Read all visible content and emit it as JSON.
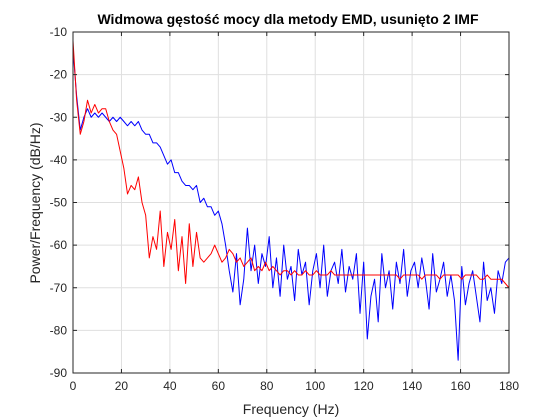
{
  "chart_data": {
    "type": "line",
    "title": "Widmowa gęstość mocy dla metody EMD, usunięto 2 IMF",
    "xlabel": "Frequency (Hz)",
    "ylabel": "Power/Frequency (dB/Hz)",
    "xlim": [
      0,
      180
    ],
    "ylim": [
      -90,
      -10
    ],
    "x_ticks": [
      0,
      20,
      40,
      60,
      80,
      100,
      120,
      140,
      160,
      180
    ],
    "y_ticks": [
      -90,
      -80,
      -70,
      -60,
      -50,
      -40,
      -30,
      -20,
      -10
    ],
    "grid": true,
    "series": [
      {
        "color": "#0000ff",
        "points": [
          [
            0,
            -14
          ],
          [
            1.5,
            -25
          ],
          [
            3,
            -33
          ],
          [
            4.5,
            -30
          ],
          [
            6,
            -28
          ],
          [
            7.5,
            -30
          ],
          [
            9,
            -29
          ],
          [
            10.5,
            -30
          ],
          [
            12,
            -29
          ],
          [
            13.5,
            -30
          ],
          [
            15,
            -31
          ],
          [
            16.5,
            -30
          ],
          [
            18,
            -31
          ],
          [
            19.5,
            -30
          ],
          [
            21,
            -31
          ],
          [
            22.5,
            -32
          ],
          [
            24,
            -31
          ],
          [
            25.5,
            -32
          ],
          [
            27,
            -31
          ],
          [
            28.5,
            -33
          ],
          [
            30,
            -34
          ],
          [
            31.5,
            -34
          ],
          [
            33,
            -36
          ],
          [
            34.5,
            -36
          ],
          [
            36,
            -37
          ],
          [
            37.5,
            -39
          ],
          [
            39,
            -41
          ],
          [
            40.5,
            -40
          ],
          [
            42,
            -43
          ],
          [
            43.5,
            -43
          ],
          [
            45,
            -45
          ],
          [
            46.5,
            -46
          ],
          [
            48,
            -46
          ],
          [
            49.5,
            -47
          ],
          [
            51,
            -46
          ],
          [
            52.5,
            -50
          ],
          [
            54,
            -49
          ],
          [
            55.5,
            -51
          ],
          [
            57,
            -51
          ],
          [
            58.5,
            -53
          ],
          [
            60,
            -52
          ],
          [
            61.5,
            -55
          ],
          [
            63,
            -60
          ],
          [
            64.5,
            -66
          ],
          [
            66,
            -71
          ],
          [
            67.5,
            -62
          ],
          [
            69,
            -74
          ],
          [
            70.5,
            -68
          ],
          [
            72,
            -56
          ],
          [
            73.5,
            -66
          ],
          [
            75,
            -60
          ],
          [
            76.5,
            -69
          ],
          [
            78,
            -62
          ],
          [
            79.5,
            -65
          ],
          [
            81,
            -58
          ],
          [
            82.5,
            -70
          ],
          [
            84,
            -63
          ],
          [
            85.5,
            -72
          ],
          [
            87,
            -60
          ],
          [
            88.5,
            -68
          ],
          [
            90,
            -65
          ],
          [
            91.5,
            -73
          ],
          [
            93,
            -61
          ],
          [
            94.5,
            -67
          ],
          [
            96,
            -64
          ],
          [
            97.5,
            -74
          ],
          [
            99,
            -66
          ],
          [
            100.5,
            -62
          ],
          [
            102,
            -70
          ],
          [
            103.5,
            -60
          ],
          [
            105,
            -72
          ],
          [
            106.5,
            -66
          ],
          [
            108,
            -64
          ],
          [
            109.5,
            -69
          ],
          [
            111,
            -61
          ],
          [
            112.5,
            -71
          ],
          [
            114,
            -65
          ],
          [
            115.5,
            -68
          ],
          [
            117,
            -62
          ],
          [
            118.5,
            -76
          ],
          [
            120,
            -64
          ],
          [
            121.5,
            -82
          ],
          [
            123,
            -72
          ],
          [
            124.5,
            -68
          ],
          [
            126,
            -78
          ],
          [
            127.5,
            -62
          ],
          [
            129,
            -70
          ],
          [
            130.5,
            -66
          ],
          [
            132,
            -75
          ],
          [
            133.5,
            -64
          ],
          [
            135,
            -69
          ],
          [
            136.5,
            -61
          ],
          [
            138,
            -72
          ],
          [
            139.5,
            -66
          ],
          [
            141,
            -64
          ],
          [
            142.5,
            -70
          ],
          [
            144,
            -63
          ],
          [
            145.5,
            -68
          ],
          [
            147,
            -75
          ],
          [
            148.5,
            -62
          ],
          [
            150,
            -71
          ],
          [
            151.5,
            -68
          ],
          [
            153,
            -64
          ],
          [
            154.5,
            -72
          ],
          [
            156,
            -67
          ],
          [
            157.5,
            -73
          ],
          [
            159,
            -87
          ],
          [
            160.5,
            -65
          ],
          [
            162,
            -74
          ],
          [
            163.5,
            -69
          ],
          [
            165,
            -66
          ],
          [
            166.5,
            -72
          ],
          [
            168,
            -78
          ],
          [
            169.5,
            -64
          ],
          [
            171,
            -73
          ],
          [
            172.5,
            -70
          ],
          [
            174,
            -76
          ],
          [
            175.5,
            -66
          ],
          [
            177,
            -69
          ],
          [
            178.5,
            -64
          ],
          [
            180,
            -63
          ]
        ]
      },
      {
        "color": "#ff0000",
        "points": [
          [
            0,
            -12
          ],
          [
            1.5,
            -26
          ],
          [
            3,
            -34
          ],
          [
            4.5,
            -31
          ],
          [
            6,
            -26
          ],
          [
            7.5,
            -29
          ],
          [
            9,
            -27
          ],
          [
            10.5,
            -29
          ],
          [
            12,
            -28
          ],
          [
            13.5,
            -28
          ],
          [
            15,
            -31
          ],
          [
            16.5,
            -33
          ],
          [
            18,
            -34
          ],
          [
            19.5,
            -38
          ],
          [
            21,
            -42
          ],
          [
            22.5,
            -48
          ],
          [
            24,
            -46
          ],
          [
            25.5,
            -47
          ],
          [
            27,
            -44
          ],
          [
            28.5,
            -50
          ],
          [
            30,
            -53
          ],
          [
            31.5,
            -63
          ],
          [
            33,
            -58
          ],
          [
            34.5,
            -61
          ],
          [
            36,
            -52
          ],
          [
            37.5,
            -65
          ],
          [
            39,
            -57
          ],
          [
            40.5,
            -61
          ],
          [
            42,
            -54
          ],
          [
            43.5,
            -66
          ],
          [
            45,
            -58
          ],
          [
            46.5,
            -69
          ],
          [
            48,
            -55
          ],
          [
            49.5,
            -65
          ],
          [
            51,
            -57
          ],
          [
            52.5,
            -63
          ],
          [
            54,
            -64
          ],
          [
            55.5,
            -63
          ],
          [
            57,
            -62
          ],
          [
            58.5,
            -60
          ],
          [
            60,
            -62
          ],
          [
            61.5,
            -64
          ],
          [
            63,
            -63
          ],
          [
            64.5,
            -61
          ],
          [
            66,
            -62
          ],
          [
            67.5,
            -64
          ],
          [
            69,
            -63
          ],
          [
            70.5,
            -65
          ],
          [
            72,
            -64
          ],
          [
            73.5,
            -63
          ],
          [
            75,
            -66
          ],
          [
            76.5,
            -65
          ],
          [
            78,
            -66
          ],
          [
            79.5,
            -64
          ],
          [
            81,
            -66
          ],
          [
            82.5,
            -65
          ],
          [
            84,
            -66
          ],
          [
            85.5,
            -67
          ],
          [
            87,
            -66
          ],
          [
            88.5,
            -66
          ],
          [
            90,
            -67
          ],
          [
            91.5,
            -66
          ],
          [
            93,
            -67
          ],
          [
            94.5,
            -67
          ],
          [
            96,
            -66
          ],
          [
            97.5,
            -67
          ],
          [
            99,
            -67
          ],
          [
            100.5,
            -66
          ],
          [
            102,
            -67
          ],
          [
            103.5,
            -67
          ],
          [
            105,
            -67
          ],
          [
            106.5,
            -66
          ],
          [
            108,
            -67
          ],
          [
            109.5,
            -67
          ],
          [
            111,
            -67
          ],
          [
            112.5,
            -67
          ],
          [
            114,
            -67
          ],
          [
            115.5,
            -67
          ],
          [
            117,
            -67
          ],
          [
            118.5,
            -67
          ],
          [
            120,
            -67
          ],
          [
            121.5,
            -67
          ],
          [
            123,
            -67
          ],
          [
            124.5,
            -67
          ],
          [
            126,
            -67
          ],
          [
            127.5,
            -67
          ],
          [
            129,
            -67
          ],
          [
            130.5,
            -67
          ],
          [
            132,
            -67
          ],
          [
            133.5,
            -67
          ],
          [
            135,
            -68
          ],
          [
            136.5,
            -67
          ],
          [
            138,
            -67
          ],
          [
            139.5,
            -67
          ],
          [
            141,
            -67
          ],
          [
            142.5,
            -67
          ],
          [
            144,
            -68
          ],
          [
            145.5,
            -67
          ],
          [
            147,
            -67
          ],
          [
            148.5,
            -67
          ],
          [
            150,
            -67
          ],
          [
            151.5,
            -68
          ],
          [
            153,
            -67
          ],
          [
            154.5,
            -67
          ],
          [
            156,
            -67
          ],
          [
            157.5,
            -67
          ],
          [
            159,
            -67
          ],
          [
            160.5,
            -68
          ],
          [
            162,
            -67
          ],
          [
            163.5,
            -67
          ],
          [
            165,
            -67
          ],
          [
            166.5,
            -67
          ],
          [
            168,
            -68
          ],
          [
            169.5,
            -68
          ],
          [
            171,
            -67
          ],
          [
            172.5,
            -68
          ],
          [
            174,
            -68
          ],
          [
            175.5,
            -68
          ],
          [
            177,
            -68
          ],
          [
            178.5,
            -69
          ],
          [
            180,
            -70
          ]
        ]
      }
    ]
  }
}
